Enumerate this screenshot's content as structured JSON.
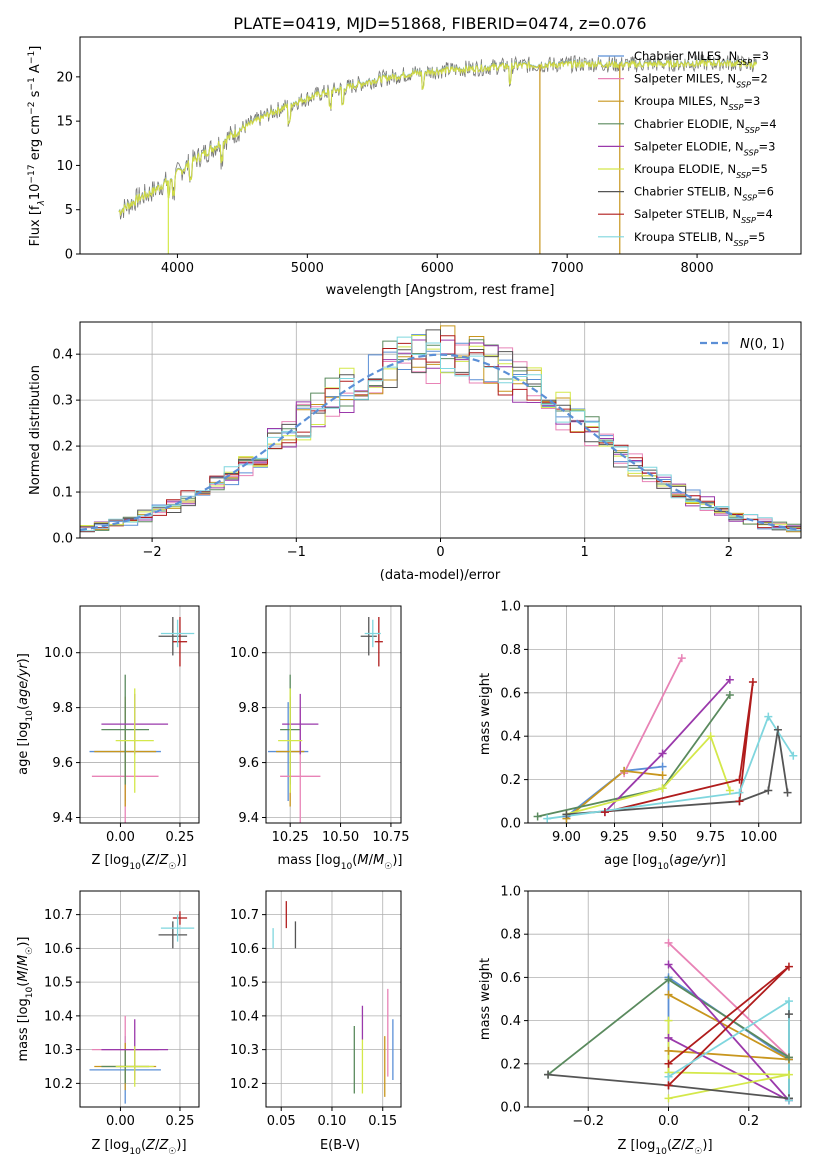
{
  "title": "PLATE=0419, MJD=51868, FIBERID=0474, z=0.076",
  "colors": {
    "Chabrier MILES": "#5b8fd6",
    "Salpeter MILES": "#e883b6",
    "Kroupa MILES": "#c8961e",
    "Chabrier ELODIE": "#5a8a5e",
    "Salpeter ELODIE": "#9a39ab",
    "Kroupa ELODIE": "#d4e84a",
    "Chabrier STELIB": "#555555",
    "Salpeter STELIB": "#b01c1c",
    "Kroupa STELIB": "#7fd6de",
    "normal": "#5b8fd6"
  },
  "chart_data": [
    {
      "id": "spectrum",
      "type": "line",
      "title": "PLATE=0419, MJD=51868, FIBERID=0474, z=0.076",
      "xlabel": "wavelength [Angstrom, rest frame]",
      "ylabel": "Flux [f_λ10^-17 erg cm^-2 s^-1 A^-1]",
      "xlim": [
        3250,
        8800
      ],
      "ylim": [
        0,
        24.5
      ],
      "xticks": [
        4000,
        5000,
        6000,
        7000,
        8000
      ],
      "yticks": [
        0,
        5,
        10,
        15,
        20
      ],
      "legend_position": "top-right",
      "legend": [
        {
          "name": "Chabrier MILES",
          "label": "Chabrier MILES, N_SSP=3"
        },
        {
          "name": "Salpeter MILES",
          "label": "Salpeter MILES, N_SSP=2"
        },
        {
          "name": "Kroupa MILES",
          "label": "Kroupa MILES, N_SSP=3"
        },
        {
          "name": "Chabrier ELODIE",
          "label": "Chabrier ELODIE, N_SSP=4"
        },
        {
          "name": "Salpeter ELODIE",
          "label": "Salpeter ELODIE, N_SSP=3"
        },
        {
          "name": "Kroupa ELODIE",
          "label": "Kroupa ELODIE, N_SSP=5"
        },
        {
          "name": "Chabrier STELIB",
          "label": "Chabrier STELIB, N_SSP=6"
        },
        {
          "name": "Salpeter STELIB",
          "label": "Salpeter STELIB, N_SSP=4"
        },
        {
          "name": "Kroupa STELIB",
          "label": "Kroupa STELIB, N_SSP=5"
        }
      ],
      "continuum": {
        "x": [
          3550,
          3700,
          3800,
          3950,
          4100,
          4300,
          4500,
          4700,
          4900,
          5100,
          5300,
          5500,
          5800,
          6000,
          6300,
          6600,
          6900,
          7200,
          7400,
          7800,
          8200,
          8500
        ],
        "y": [
          4.8,
          6.3,
          7.0,
          8.5,
          10.3,
          12.3,
          14.2,
          15.8,
          17.1,
          18.1,
          18.8,
          19.6,
          20.4,
          20.7,
          21.0,
          21.3,
          21.4,
          21.5,
          21.4,
          21.5,
          21.6,
          21.4
        ]
      }
    },
    {
      "id": "residuals",
      "type": "histogram",
      "xlabel": "(data-model)/error",
      "ylabel": "Normed distribution",
      "xlim": [
        -2.5,
        2.5
      ],
      "ylim": [
        0,
        0.47
      ],
      "xticks": [
        -2,
        -1,
        0,
        1,
        2
      ],
      "yticks": [
        0.0,
        0.1,
        0.2,
        0.3,
        0.4
      ],
      "grid": true,
      "legend_position": "top-right",
      "legend": "N(0,1)",
      "bin_width": 0.1
    },
    {
      "id": "age-vs-Z",
      "type": "errorbar",
      "xlabel": "Z [log10(Z/Z☉)]",
      "ylabel": "age  [log10(age/yr)]",
      "xlim": [
        -0.17,
        0.33
      ],
      "ylim": [
        9.38,
        10.17
      ],
      "xticks": [
        0.0,
        0.25
      ],
      "yticks": [
        9.4,
        9.6,
        9.8,
        10.0
      ],
      "grid": true,
      "points": [
        {
          "series": "Chabrier MILES",
          "x": 0.02,
          "xerr": 0.15,
          "y": 9.64,
          "yerr": 0.18
        },
        {
          "series": "Salpeter MILES",
          "x": 0.02,
          "xerr": 0.14,
          "y": 9.55,
          "yerr": 0.25
        },
        {
          "series": "Kroupa MILES",
          "x": 0.02,
          "xerr": 0.13,
          "y": 9.64,
          "yerr": 0.2
        },
        {
          "series": "Chabrier ELODIE",
          "x": 0.02,
          "xerr": 0.1,
          "y": 9.72,
          "yerr": 0.2
        },
        {
          "series": "Salpeter ELODIE",
          "x": 0.06,
          "xerr": 0.14,
          "y": 9.74,
          "yerr": 0.11
        },
        {
          "series": "Kroupa ELODIE",
          "x": 0.06,
          "xerr": 0.08,
          "y": 9.68,
          "yerr": 0.19
        },
        {
          "series": "Chabrier STELIB",
          "x": 0.22,
          "xerr": 0.06,
          "y": 10.06,
          "yerr": 0.07
        },
        {
          "series": "Salpeter STELIB",
          "x": 0.25,
          "xerr": 0.03,
          "y": 10.04,
          "yerr": 0.09
        },
        {
          "series": "Kroupa STELIB",
          "x": 0.24,
          "xerr": 0.07,
          "y": 10.07,
          "yerr": 0.05
        }
      ]
    },
    {
      "id": "age-vs-mass",
      "type": "errorbar",
      "xlabel": "mass [log10(M/M☉)]",
      "ylabel": "",
      "xlim": [
        10.13,
        10.8
      ],
      "ylim": [
        9.38,
        10.17
      ],
      "xticks": [
        10.25,
        10.5,
        10.75
      ],
      "yticks": [
        9.4,
        9.6,
        9.8,
        10.0
      ],
      "grid": true,
      "points": [
        {
          "series": "Chabrier MILES",
          "x": 10.24,
          "xerr": 0.1,
          "y": 9.64,
          "yerr": 0.18
        },
        {
          "series": "Salpeter MILES",
          "x": 10.3,
          "xerr": 0.1,
          "y": 9.55,
          "yerr": 0.25
        },
        {
          "series": "Kroupa MILES",
          "x": 10.25,
          "xerr": 0.07,
          "y": 9.64,
          "yerr": 0.2
        },
        {
          "series": "Chabrier ELODIE",
          "x": 10.25,
          "xerr": 0.05,
          "y": 9.72,
          "yerr": 0.2
        },
        {
          "series": "Salpeter ELODIE",
          "x": 10.3,
          "xerr": 0.09,
          "y": 9.74,
          "yerr": 0.11
        },
        {
          "series": "Kroupa ELODIE",
          "x": 10.25,
          "xerr": 0.06,
          "y": 9.68,
          "yerr": 0.19
        },
        {
          "series": "Chabrier STELIB",
          "x": 10.64,
          "xerr": 0.04,
          "y": 10.06,
          "yerr": 0.07
        },
        {
          "series": "Salpeter STELIB",
          "x": 10.69,
          "xerr": 0.02,
          "y": 10.04,
          "yerr": 0.09
        },
        {
          "series": "Kroupa STELIB",
          "x": 10.66,
          "xerr": 0.04,
          "y": 10.07,
          "yerr": 0.05
        }
      ]
    },
    {
      "id": "weight-vs-age",
      "type": "line",
      "xlabel": "age  [log10(age/yr)]",
      "ylabel": "mass weight",
      "xlim": [
        8.8,
        10.22
      ],
      "ylim": [
        0,
        1.0
      ],
      "xticks": [
        9.0,
        9.25,
        9.5,
        9.75,
        10.0
      ],
      "yticks": [
        0.0,
        0.2,
        0.4,
        0.6,
        0.8,
        1.0
      ],
      "grid": true,
      "series": [
        {
          "name": "Chabrier MILES",
          "x": [
            9.0,
            9.3,
            9.5
          ],
          "y": [
            0.03,
            0.24,
            0.26
          ]
        },
        {
          "name": "Salpeter MILES",
          "x": [
            9.3,
            9.6
          ],
          "y": [
            0.23,
            0.76
          ]
        },
        {
          "name": "Kroupa MILES",
          "x": [
            9.0,
            9.3,
            9.5
          ],
          "y": [
            0.02,
            0.24,
            0.22
          ]
        },
        {
          "name": "Chabrier ELODIE",
          "x": [
            8.85,
            9.5,
            9.85
          ],
          "y": [
            0.03,
            0.16,
            0.59
          ]
        },
        {
          "name": "Salpeter ELODIE",
          "x": [
            9.2,
            9.5,
            9.85
          ],
          "y": [
            0.05,
            0.32,
            0.66
          ]
        },
        {
          "name": "Kroupa ELODIE",
          "x": [
            9.0,
            9.5,
            9.75,
            9.85
          ],
          "y": [
            0.04,
            0.16,
            0.4,
            0.15
          ]
        },
        {
          "name": "Chabrier STELIB",
          "x": [
            9.0,
            9.9,
            10.05,
            10.1,
            10.15
          ],
          "y": [
            0.04,
            0.1,
            0.15,
            0.43,
            0.14
          ]
        },
        {
          "name": "Salpeter STELIB",
          "x": [
            9.2,
            9.9,
            9.97,
            9.9
          ],
          "y": [
            0.05,
            0.2,
            0.65,
            0.1
          ]
        },
        {
          "name": "Kroupa STELIB",
          "x": [
            8.9,
            9.9,
            10.05,
            10.18
          ],
          "y": [
            0.02,
            0.14,
            0.49,
            0.31
          ]
        }
      ]
    },
    {
      "id": "mass-vs-Z",
      "type": "errorbar",
      "xlabel": "Z [log10(Z/Z☉)]",
      "ylabel": "mass [log10(M/M☉)]",
      "xlim": [
        -0.17,
        0.33
      ],
      "ylim": [
        10.13,
        10.77
      ],
      "xticks": [
        0.0,
        0.25
      ],
      "yticks": [
        10.2,
        10.3,
        10.4,
        10.5,
        10.6,
        10.7
      ],
      "grid": true,
      "points": [
        {
          "series": "Chabrier MILES",
          "x": 0.02,
          "xerr": 0.15,
          "y": 10.24,
          "yerr": 0.1
        },
        {
          "series": "Salpeter MILES",
          "x": 0.02,
          "xerr": 0.14,
          "y": 10.3,
          "yerr": 0.1
        },
        {
          "series": "Kroupa MILES",
          "x": 0.02,
          "xerr": 0.13,
          "y": 10.25,
          "yerr": 0.07
        },
        {
          "series": "Chabrier ELODIE",
          "x": 0.02,
          "xerr": 0.1,
          "y": 10.25,
          "yerr": 0.05
        },
        {
          "series": "Salpeter ELODIE",
          "x": 0.06,
          "xerr": 0.14,
          "y": 10.3,
          "yerr": 0.09
        },
        {
          "series": "Kroupa ELODIE",
          "x": 0.06,
          "xerr": 0.08,
          "y": 10.25,
          "yerr": 0.06
        },
        {
          "series": "Chabrier STELIB",
          "x": 0.22,
          "xerr": 0.06,
          "y": 10.64,
          "yerr": 0.04
        },
        {
          "series": "Salpeter STELIB",
          "x": 0.25,
          "xerr": 0.03,
          "y": 10.69,
          "yerr": 0.02
        },
        {
          "series": "Kroupa STELIB",
          "x": 0.24,
          "xerr": 0.07,
          "y": 10.66,
          "yerr": 0.04
        }
      ]
    },
    {
      "id": "mass-vs-ebv",
      "type": "errorbar",
      "xlabel": "E(B-V)",
      "ylabel": "",
      "xlim": [
        0.035,
        0.168
      ],
      "ylim": [
        10.13,
        10.77
      ],
      "xticks": [
        0.05,
        0.1,
        0.15
      ],
      "yticks": [
        10.2,
        10.3,
        10.4,
        10.5,
        10.6,
        10.7
      ],
      "grid": true,
      "points": [
        {
          "series": "Chabrier MILES",
          "x": 0.16,
          "y": 10.3,
          "yerr": 0.09
        },
        {
          "series": "Salpeter MILES",
          "x": 0.155,
          "y": 10.35,
          "yerr": 0.13
        },
        {
          "series": "Kroupa MILES",
          "x": 0.152,
          "y": 10.25,
          "yerr": 0.09
        },
        {
          "series": "Chabrier ELODIE",
          "x": 0.122,
          "y": 10.27,
          "yerr": 0.1
        },
        {
          "series": "Salpeter ELODIE",
          "x": 0.13,
          "y": 10.38,
          "yerr": 0.05
        },
        {
          "series": "Kroupa ELODIE",
          "x": 0.13,
          "y": 10.25,
          "yerr": 0.08
        },
        {
          "series": "Chabrier STELIB",
          "x": 0.064,
          "y": 10.64,
          "yerr": 0.04
        },
        {
          "series": "Salpeter STELIB",
          "x": 0.055,
          "y": 10.7,
          "yerr": 0.04
        },
        {
          "series": "Kroupa STELIB",
          "x": 0.042,
          "y": 10.63,
          "yerr": 0.03
        }
      ]
    },
    {
      "id": "weight-vs-Z",
      "type": "line",
      "xlabel": "Z [log10(Z/Z☉)]",
      "ylabel": "mass weight",
      "xlim": [
        -0.35,
        0.33
      ],
      "ylim": [
        0,
        1.0
      ],
      "xticks": [
        -0.2,
        0.0,
        0.2
      ],
      "yticks": [
        0.0,
        0.2,
        0.4,
        0.6,
        0.8,
        1.0
      ],
      "grid": true,
      "series": [
        {
          "name": "Chabrier MILES",
          "x": [
            0.0,
            0.0,
            0.3
          ],
          "y": [
            0.14,
            0.6,
            0.22
          ]
        },
        {
          "name": "Salpeter MILES",
          "x": [
            0.0,
            0.3
          ],
          "y": [
            0.76,
            0.23
          ]
        },
        {
          "name": "Kroupa MILES",
          "x": [
            0.0,
            0.3,
            0.0
          ],
          "y": [
            0.52,
            0.22,
            0.26
          ]
        },
        {
          "name": "Chabrier ELODIE",
          "x": [
            -0.3,
            0.0,
            0.3,
            0.3
          ],
          "y": [
            0.15,
            0.59,
            0.23,
            0.04
          ]
        },
        {
          "name": "Salpeter ELODIE",
          "x": [
            0.0,
            0.3,
            0.0
          ],
          "y": [
            0.66,
            0.03,
            0.32
          ]
        },
        {
          "name": "Kroupa ELODIE",
          "x": [
            0.0,
            0.0,
            0.3,
            0.0
          ],
          "y": [
            0.4,
            0.16,
            0.15,
            0.04
          ]
        },
        {
          "name": "Chabrier STELIB",
          "x": [
            -0.3,
            0.0,
            0.3,
            0.3
          ],
          "y": [
            0.15,
            0.1,
            0.04,
            0.43
          ]
        },
        {
          "name": "Salpeter STELIB",
          "x": [
            0.0,
            0.3,
            0.0
          ],
          "y": [
            0.2,
            0.65,
            0.1
          ]
        },
        {
          "name": "Kroupa STELIB",
          "x": [
            0.0,
            0.3,
            0.3
          ],
          "y": [
            0.14,
            0.49,
            0.03
          ]
        }
      ]
    }
  ]
}
